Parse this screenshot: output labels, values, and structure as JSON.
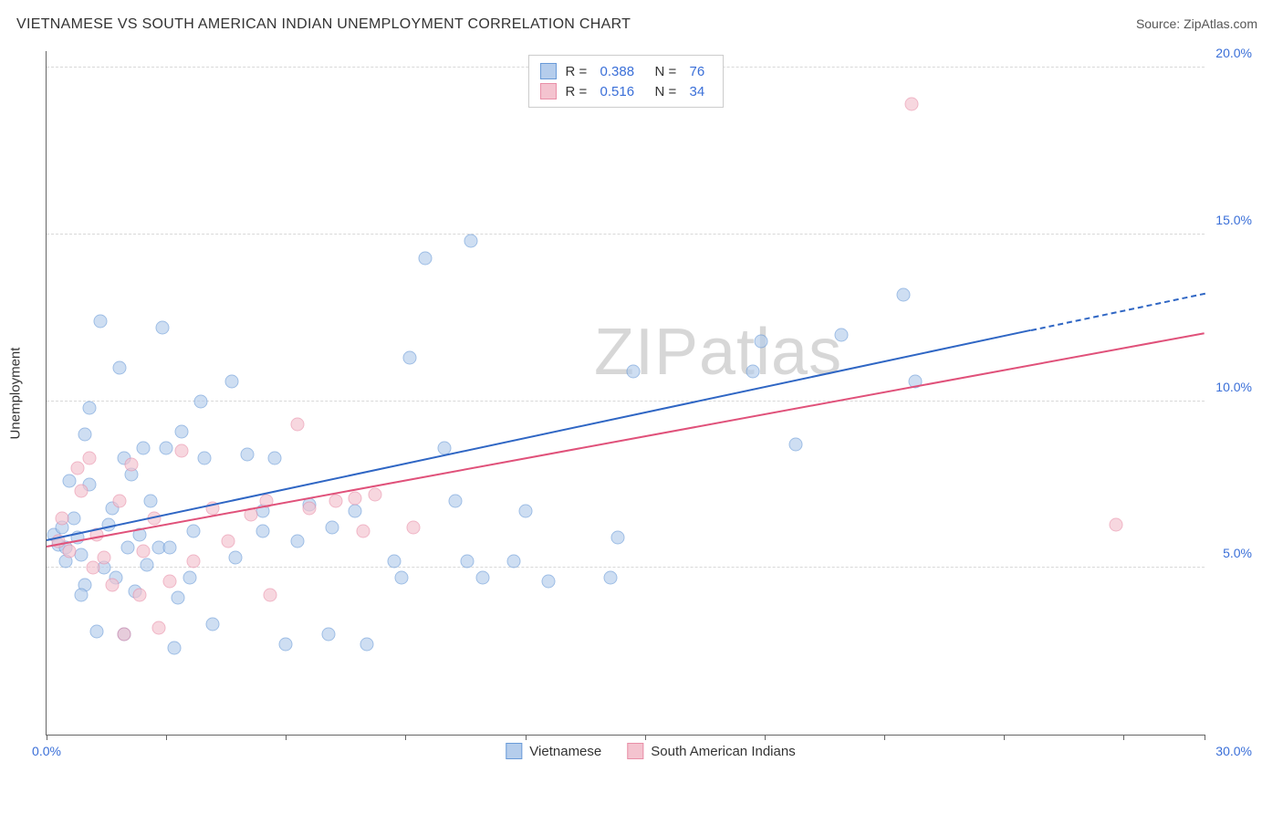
{
  "title": "VIETNAMESE VS SOUTH AMERICAN INDIAN UNEMPLOYMENT CORRELATION CHART",
  "source_label": "Source: ZipAtlas.com",
  "ylabel": "Unemployment",
  "watermark_bold": "ZIP",
  "watermark_thin": "atlas",
  "chart": {
    "type": "scatter",
    "xlim": [
      0,
      30
    ],
    "ylim": [
      0,
      20.5
    ],
    "xtick_positions": [
      0,
      3.1,
      6.2,
      9.3,
      12.4,
      15.5,
      18.6,
      21.7,
      24.8,
      27.9,
      30
    ],
    "xtick_labels": {
      "0": "0.0%",
      "30": "30.0%"
    },
    "ytick_positions": [
      5,
      10,
      15,
      20
    ],
    "ytick_labels": {
      "5": "5.0%",
      "10": "10.0%",
      "15": "15.0%",
      "20": "20.0%"
    },
    "grid_color": "#d8d8d8",
    "background_color": "#ffffff",
    "axis_label_color": "#3a6fd8",
    "point_radius": 7.5,
    "point_opacity": 0.65,
    "series": [
      {
        "name": "Vietnamese",
        "fill_color": "#b5cdec",
        "stroke_color": "#6a9bd8",
        "line_color": "#2f66c4",
        "R": "0.388",
        "N": "76",
        "trend": {
          "x1": 0,
          "y1": 5.8,
          "x2": 25.5,
          "y2": 12.1,
          "dash_to_x": 30,
          "dash_to_y": 13.2
        },
        "points": [
          [
            0.2,
            6.0
          ],
          [
            0.3,
            5.7
          ],
          [
            0.4,
            6.2
          ],
          [
            0.5,
            5.6
          ],
          [
            0.6,
            7.6
          ],
          [
            0.7,
            6.5
          ],
          [
            0.8,
            5.9
          ],
          [
            0.9,
            5.4
          ],
          [
            1.0,
            9.0
          ],
          [
            1.1,
            9.8
          ],
          [
            1.1,
            7.5
          ],
          [
            1.3,
            3.1
          ],
          [
            1.4,
            12.4
          ],
          [
            1.5,
            5.0
          ],
          [
            1.6,
            6.3
          ],
          [
            1.8,
            4.7
          ],
          [
            1.9,
            11.0
          ],
          [
            2.0,
            8.3
          ],
          [
            2.0,
            3.0
          ],
          [
            2.1,
            5.6
          ],
          [
            2.3,
            4.3
          ],
          [
            2.4,
            6.0
          ],
          [
            2.5,
            8.6
          ],
          [
            2.6,
            5.1
          ],
          [
            2.7,
            7.0
          ],
          [
            2.9,
            5.6
          ],
          [
            3.0,
            12.2
          ],
          [
            3.1,
            8.6
          ],
          [
            3.2,
            5.6
          ],
          [
            3.3,
            2.6
          ],
          [
            3.5,
            9.1
          ],
          [
            3.7,
            4.7
          ],
          [
            3.8,
            6.1
          ],
          [
            4.0,
            10.0
          ],
          [
            4.1,
            8.3
          ],
          [
            4.3,
            3.3
          ],
          [
            4.8,
            10.6
          ],
          [
            4.9,
            5.3
          ],
          [
            5.2,
            8.4
          ],
          [
            5.6,
            6.7
          ],
          [
            5.6,
            6.1
          ],
          [
            5.9,
            8.3
          ],
          [
            6.2,
            2.7
          ],
          [
            6.5,
            5.8
          ],
          [
            6.8,
            6.9
          ],
          [
            7.3,
            3.0
          ],
          [
            7.4,
            6.2
          ],
          [
            8.0,
            6.7
          ],
          [
            8.3,
            2.7
          ],
          [
            9.0,
            5.2
          ],
          [
            9.2,
            4.7
          ],
          [
            9.4,
            11.3
          ],
          [
            9.8,
            14.3
          ],
          [
            10.3,
            8.6
          ],
          [
            10.6,
            7.0
          ],
          [
            10.9,
            5.2
          ],
          [
            11.0,
            14.8
          ],
          [
            11.3,
            4.7
          ],
          [
            12.1,
            5.2
          ],
          [
            12.4,
            6.7
          ],
          [
            13.0,
            4.6
          ],
          [
            14.6,
            4.7
          ],
          [
            14.8,
            5.9
          ],
          [
            15.2,
            10.9
          ],
          [
            18.3,
            10.9
          ],
          [
            18.5,
            11.8
          ],
          [
            19.4,
            8.7
          ],
          [
            20.6,
            12.0
          ],
          [
            22.2,
            13.2
          ],
          [
            22.5,
            10.6
          ],
          [
            1.0,
            4.5
          ],
          [
            2.2,
            7.8
          ],
          [
            0.5,
            5.2
          ],
          [
            1.7,
            6.8
          ],
          [
            0.9,
            4.2
          ],
          [
            3.4,
            4.1
          ]
        ]
      },
      {
        "name": "South American Indians",
        "fill_color": "#f4c3cf",
        "stroke_color": "#e98fa8",
        "line_color": "#e0517a",
        "R": "0.516",
        "N": "34",
        "trend": {
          "x1": 0,
          "y1": 5.6,
          "x2": 30,
          "y2": 12.0
        },
        "points": [
          [
            0.3,
            5.8
          ],
          [
            0.4,
            6.5
          ],
          [
            0.6,
            5.5
          ],
          [
            0.8,
            8.0
          ],
          [
            0.9,
            7.3
          ],
          [
            1.1,
            8.3
          ],
          [
            1.3,
            6.0
          ],
          [
            1.5,
            5.3
          ],
          [
            1.7,
            4.5
          ],
          [
            1.9,
            7.0
          ],
          [
            2.0,
            3.0
          ],
          [
            2.2,
            8.1
          ],
          [
            2.4,
            4.2
          ],
          [
            2.5,
            5.5
          ],
          [
            2.8,
            6.5
          ],
          [
            2.9,
            3.2
          ],
          [
            3.2,
            4.6
          ],
          [
            3.5,
            8.5
          ],
          [
            3.8,
            5.2
          ],
          [
            4.3,
            6.8
          ],
          [
            4.7,
            5.8
          ],
          [
            5.3,
            6.6
          ],
          [
            5.7,
            7.0
          ],
          [
            5.8,
            4.2
          ],
          [
            6.5,
            9.3
          ],
          [
            6.8,
            6.8
          ],
          [
            7.5,
            7.0
          ],
          [
            8.0,
            7.1
          ],
          [
            8.2,
            6.1
          ],
          [
            8.5,
            7.2
          ],
          [
            9.5,
            6.2
          ],
          [
            22.4,
            18.9
          ],
          [
            27.7,
            6.3
          ],
          [
            1.2,
            5.0
          ]
        ]
      }
    ]
  },
  "legend_top": {
    "r_label": "R =",
    "n_label": "N ="
  },
  "legend_bottom": [
    {
      "label": "Vietnamese",
      "fill": "#b5cdec",
      "stroke": "#6a9bd8"
    },
    {
      "label": "South American Indians",
      "fill": "#f4c3cf",
      "stroke": "#e98fa8"
    }
  ]
}
